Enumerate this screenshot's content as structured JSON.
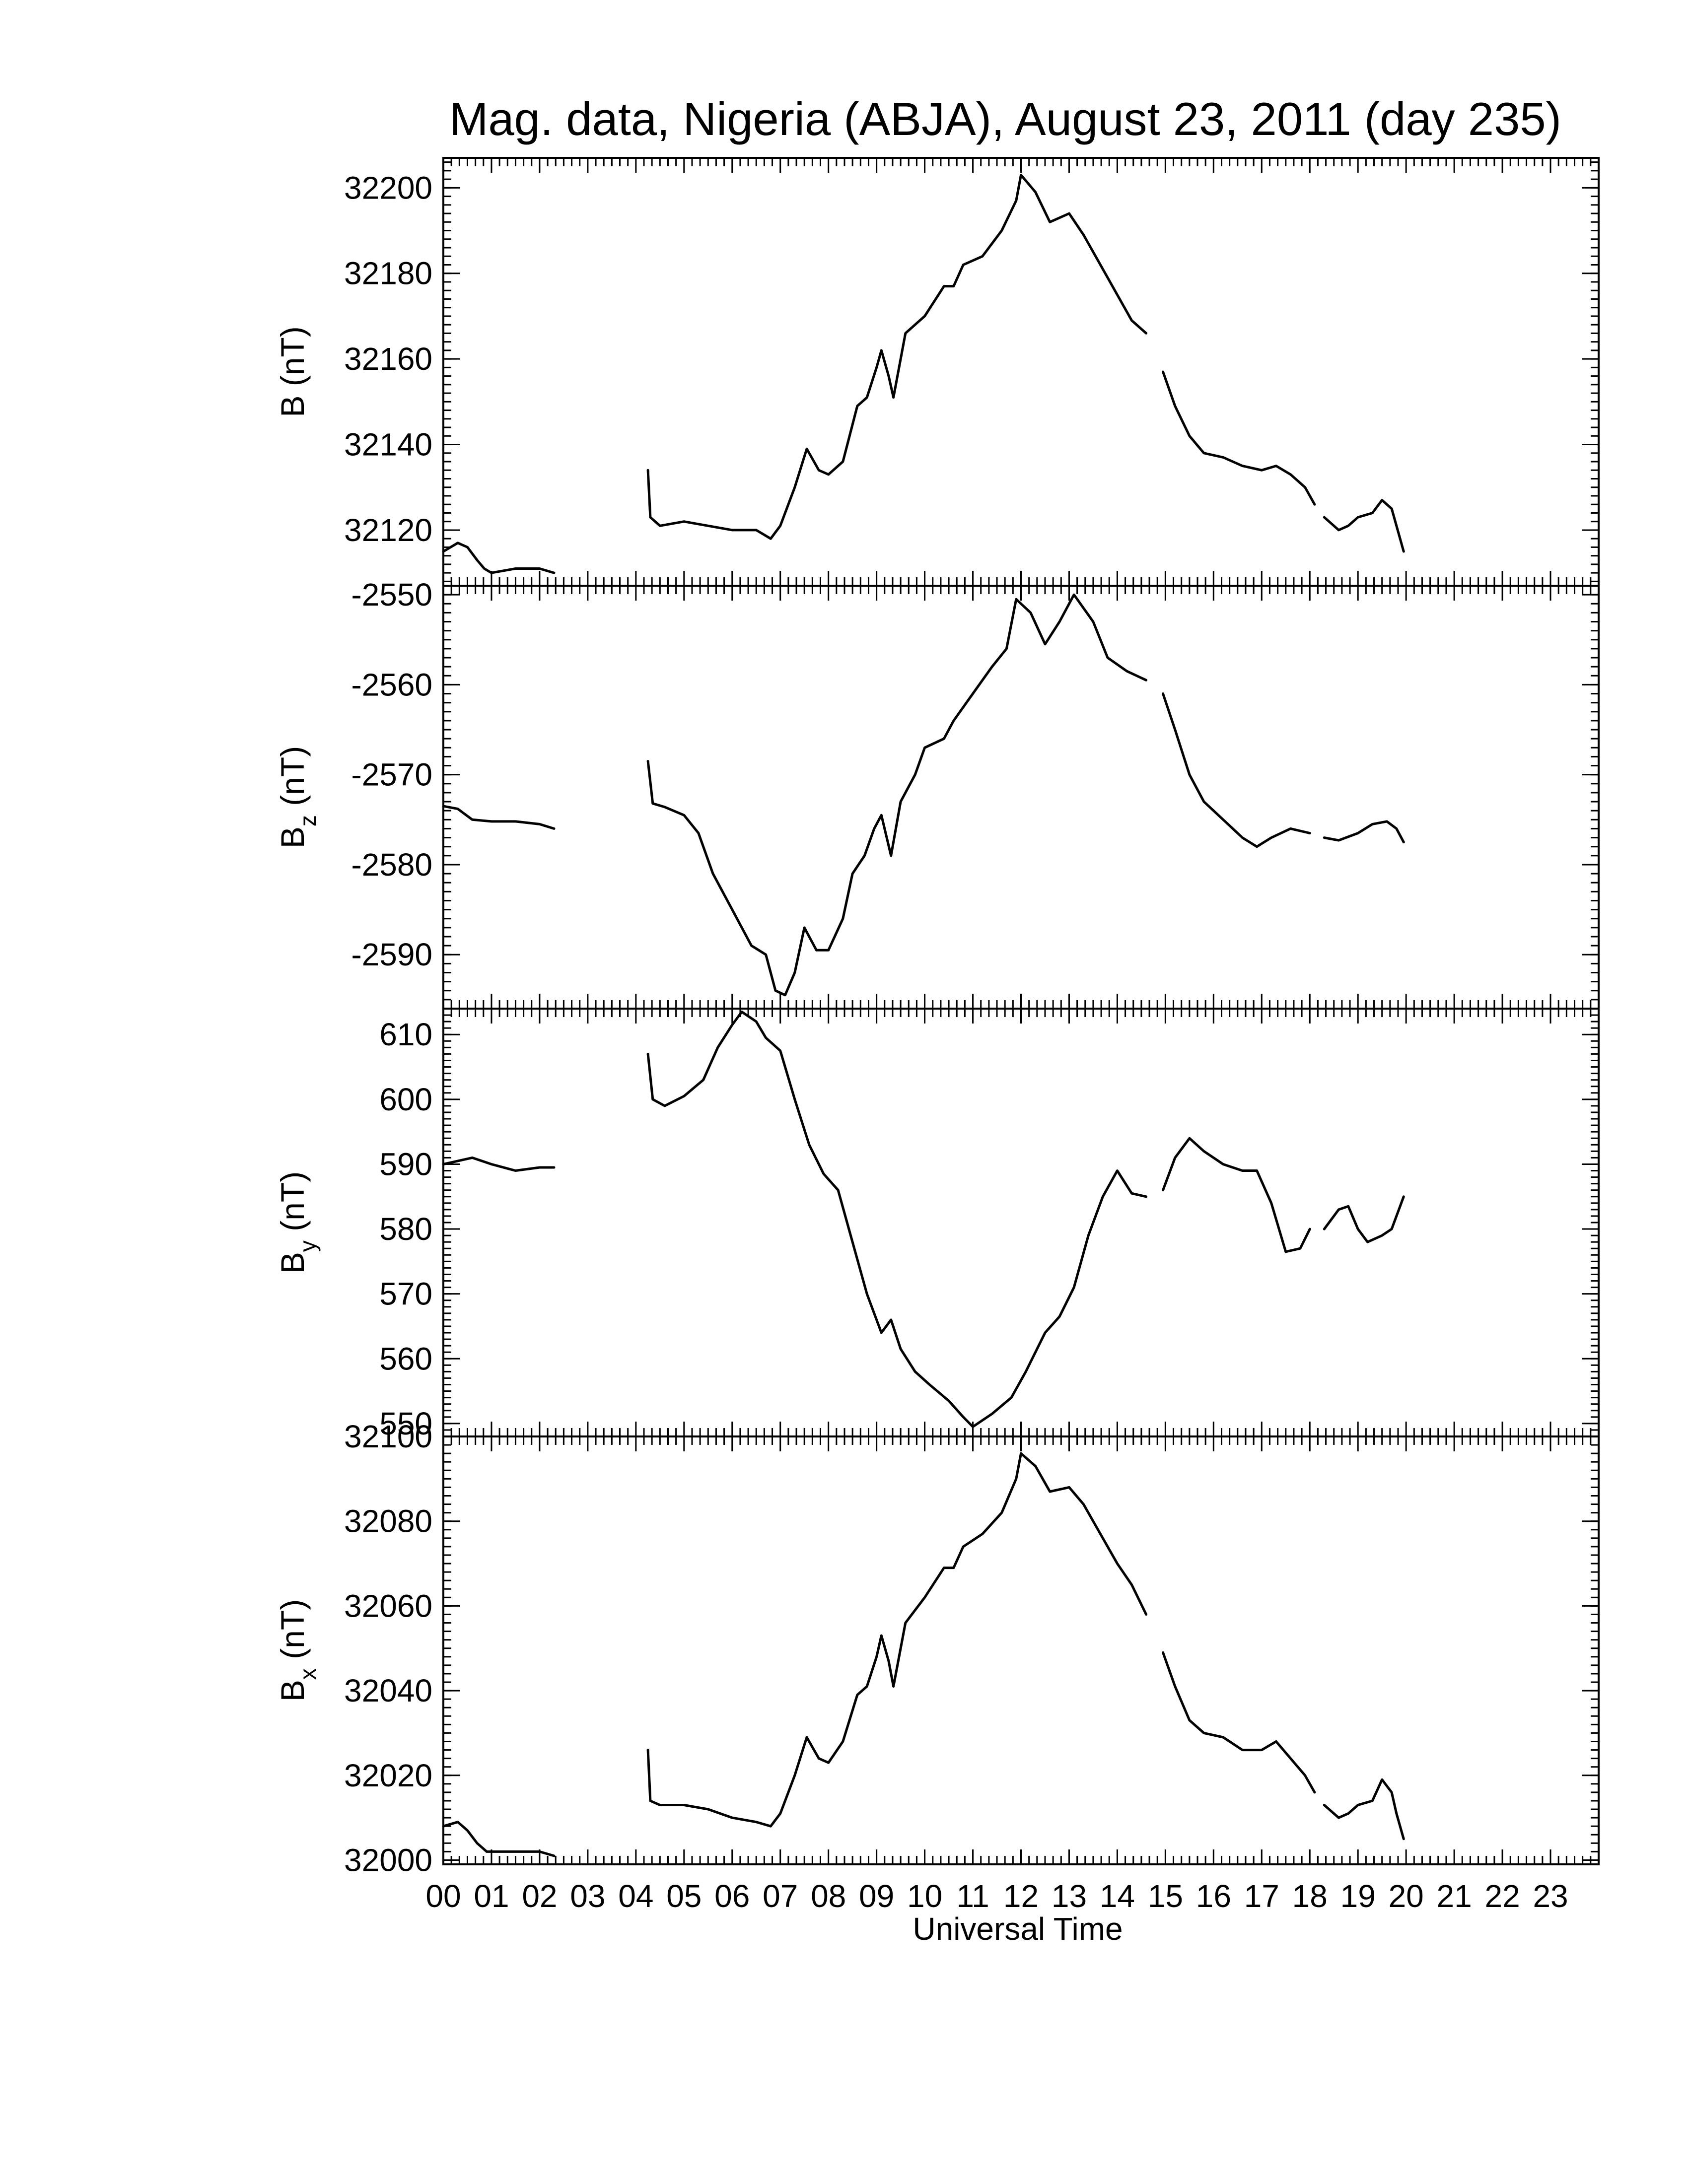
{
  "chart_data": {
    "type": "line",
    "title": "Mag. data, Nigeria (ABJA), August 23, 2011 (day 235)",
    "xlabel": "Universal Time",
    "x_tick_labels": [
      "00",
      "01",
      "02",
      "03",
      "04",
      "05",
      "06",
      "07",
      "08",
      "09",
      "10",
      "11",
      "12",
      "13",
      "14",
      "15",
      "16",
      "17",
      "18",
      "19",
      "20",
      "21",
      "22",
      "23"
    ],
    "xlim": [
      0,
      24
    ],
    "panels": [
      {
        "name": "B",
        "ylabel_main": "B",
        "ylabel_sub": "",
        "ylabel_unit": "(nT)",
        "ylim": [
          32107,
          32207
        ],
        "yticks": [
          32120,
          32140,
          32160,
          32180,
          32200
        ],
        "segments": [
          [
            [
              0.0,
              32115
            ],
            [
              0.3,
              32117
            ],
            [
              0.5,
              32116
            ],
            [
              0.7,
              32113
            ],
            [
              0.85,
              32111
            ],
            [
              1.0,
              32110
            ],
            [
              1.5,
              32111
            ],
            [
              2.0,
              32111
            ],
            [
              2.3,
              32110
            ]
          ],
          [
            [
              4.25,
              32134
            ],
            [
              4.3,
              32123
            ],
            [
              4.5,
              32121
            ],
            [
              5.0,
              32122
            ],
            [
              5.5,
              32121
            ],
            [
              6.0,
              32120
            ],
            [
              6.5,
              32120
            ],
            [
              6.8,
              32118
            ],
            [
              7.0,
              32121
            ],
            [
              7.3,
              32130
            ],
            [
              7.55,
              32139
            ],
            [
              7.8,
              32134
            ],
            [
              8.0,
              32133
            ],
            [
              8.3,
              32136
            ],
            [
              8.6,
              32149
            ],
            [
              8.8,
              32151
            ],
            [
              9.0,
              32158
            ],
            [
              9.1,
              32162
            ],
            [
              9.25,
              32156
            ],
            [
              9.35,
              32151
            ],
            [
              9.6,
              32166
            ],
            [
              10.0,
              32170
            ],
            [
              10.4,
              32177
            ],
            [
              10.6,
              32177
            ],
            [
              10.8,
              32182
            ],
            [
              11.2,
              32184
            ],
            [
              11.6,
              32190
            ],
            [
              11.9,
              32197
            ],
            [
              12.0,
              32203
            ],
            [
              12.3,
              32199
            ],
            [
              12.6,
              32192
            ],
            [
              13.0,
              32194
            ],
            [
              13.3,
              32189
            ],
            [
              13.6,
              32183
            ],
            [
              14.0,
              32175
            ],
            [
              14.3,
              32169
            ],
            [
              14.6,
              32166
            ]
          ],
          [
            [
              14.95,
              32157
            ],
            [
              15.2,
              32149
            ],
            [
              15.5,
              32142
            ],
            [
              15.8,
              32138
            ],
            [
              16.2,
              32137
            ],
            [
              16.6,
              32135
            ],
            [
              17.0,
              32134
            ],
            [
              17.3,
              32135
            ],
            [
              17.6,
              32133
            ],
            [
              17.9,
              32130
            ],
            [
              18.1,
              32126
            ]
          ],
          [
            [
              18.3,
              32123
            ],
            [
              18.6,
              32120
            ],
            [
              18.8,
              32121
            ],
            [
              19.0,
              32123
            ],
            [
              19.3,
              32124
            ],
            [
              19.5,
              32127
            ],
            [
              19.7,
              32125
            ],
            [
              19.8,
              32121
            ],
            [
              19.95,
              32115
            ]
          ]
        ]
      },
      {
        "name": "Bz",
        "ylabel_main": "B",
        "ylabel_sub": "z",
        "ylabel_unit": "(nT)",
        "ylim": [
          -2596,
          -2549
        ],
        "yticks": [
          -2590,
          -2580,
          -2570,
          -2560,
          -2550
        ],
        "segments": [
          [
            [
              0.0,
              -2573.5
            ],
            [
              0.3,
              -2573.8
            ],
            [
              0.6,
              -2575
            ],
            [
              1.0,
              -2575.2
            ],
            [
              1.5,
              -2575.2
            ],
            [
              2.0,
              -2575.5
            ],
            [
              2.3,
              -2576
            ]
          ],
          [
            [
              4.25,
              -2568.5
            ],
            [
              4.35,
              -2573.2
            ],
            [
              4.6,
              -2573.6
            ],
            [
              5.0,
              -2574.5
            ],
            [
              5.3,
              -2576.5
            ],
            [
              5.6,
              -2581
            ],
            [
              6.0,
              -2585
            ],
            [
              6.4,
              -2589
            ],
            [
              6.7,
              -2590
            ],
            [
              6.9,
              -2594
            ],
            [
              7.1,
              -2594.5
            ],
            [
              7.3,
              -2592
            ],
            [
              7.5,
              -2587
            ],
            [
              7.75,
              -2589.5
            ],
            [
              8.0,
              -2589.5
            ],
            [
              8.3,
              -2586
            ],
            [
              8.5,
              -2581
            ],
            [
              8.75,
              -2579
            ],
            [
              8.95,
              -2576
            ],
            [
              9.1,
              -2574.5
            ],
            [
              9.3,
              -2579
            ],
            [
              9.5,
              -2573
            ],
            [
              9.8,
              -2570
            ],
            [
              10.0,
              -2567
            ],
            [
              10.4,
              -2566
            ],
            [
              10.6,
              -2564
            ],
            [
              11.0,
              -2561
            ],
            [
              11.4,
              -2558
            ],
            [
              11.7,
              -2556
            ],
            [
              11.9,
              -2550.5
            ],
            [
              12.2,
              -2552
            ],
            [
              12.5,
              -2555.5
            ],
            [
              12.8,
              -2553
            ],
            [
              13.1,
              -2550
            ],
            [
              13.5,
              -2553
            ],
            [
              13.8,
              -2557
            ],
            [
              14.2,
              -2558.5
            ],
            [
              14.6,
              -2559.5
            ]
          ],
          [
            [
              14.95,
              -2561
            ],
            [
              15.2,
              -2565
            ],
            [
              15.5,
              -2570
            ],
            [
              15.8,
              -2573
            ],
            [
              16.2,
              -2575
            ],
            [
              16.6,
              -2577
            ],
            [
              16.9,
              -2578
            ],
            [
              17.2,
              -2577
            ],
            [
              17.6,
              -2576
            ],
            [
              18.0,
              -2576.5
            ]
          ],
          [
            [
              18.3,
              -2577
            ],
            [
              18.6,
              -2577.3
            ],
            [
              19.0,
              -2576.5
            ],
            [
              19.3,
              -2575.5
            ],
            [
              19.6,
              -2575.2
            ],
            [
              19.8,
              -2576
            ],
            [
              19.95,
              -2577.5
            ]
          ]
        ]
      },
      {
        "name": "By",
        "ylabel_main": "B",
        "ylabel_sub": "y",
        "ylabel_unit": "(nT)",
        "ylim": [
          548,
          614
        ],
        "yticks": [
          550,
          560,
          570,
          580,
          590,
          600,
          610
        ],
        "segments": [
          [
            [
              0.0,
              590
            ],
            [
              0.3,
              590.5
            ],
            [
              0.6,
              591
            ],
            [
              1.0,
              590
            ],
            [
              1.5,
              589
            ],
            [
              2.0,
              589.5
            ],
            [
              2.3,
              589.5
            ]
          ],
          [
            [
              4.25,
              607
            ],
            [
              4.35,
              600
            ],
            [
              4.6,
              599
            ],
            [
              5.0,
              600.5
            ],
            [
              5.4,
              603
            ],
            [
              5.7,
              608
            ],
            [
              6.0,
              611.5
            ],
            [
              6.2,
              613.5
            ],
            [
              6.5,
              612
            ],
            [
              6.7,
              609.5
            ],
            [
              7.0,
              607.5
            ],
            [
              7.3,
              600
            ],
            [
              7.6,
              593
            ],
            [
              7.9,
              588.5
            ],
            [
              8.2,
              586
            ],
            [
              8.5,
              578
            ],
            [
              8.8,
              570
            ],
            [
              9.1,
              564
            ],
            [
              9.3,
              566
            ],
            [
              9.5,
              561.5
            ],
            [
              9.8,
              558
            ],
            [
              10.1,
              556
            ],
            [
              10.5,
              553.5
            ],
            [
              10.8,
              551
            ],
            [
              11.0,
              549.5
            ],
            [
              11.4,
              551.5
            ],
            [
              11.8,
              554
            ],
            [
              12.1,
              558
            ],
            [
              12.5,
              564
            ],
            [
              12.8,
              566.5
            ],
            [
              13.1,
              571
            ],
            [
              13.4,
              579
            ],
            [
              13.7,
              585
            ],
            [
              14.0,
              589
            ],
            [
              14.3,
              585.5
            ],
            [
              14.6,
              585
            ]
          ],
          [
            [
              14.95,
              586
            ],
            [
              15.2,
              591
            ],
            [
              15.5,
              594
            ],
            [
              15.8,
              592
            ],
            [
              16.2,
              590
            ],
            [
              16.6,
              589
            ],
            [
              16.9,
              589
            ],
            [
              17.2,
              584
            ],
            [
              17.5,
              576.5
            ],
            [
              17.8,
              577
            ],
            [
              18.0,
              580
            ]
          ],
          [
            [
              18.3,
              580
            ],
            [
              18.6,
              583
            ],
            [
              18.8,
              583.5
            ],
            [
              19.0,
              580
            ],
            [
              19.2,
              578
            ],
            [
              19.5,
              579
            ],
            [
              19.7,
              580
            ],
            [
              19.95,
              585
            ]
          ]
        ]
      },
      {
        "name": "Bx",
        "ylabel_main": "B",
        "ylabel_sub": "x",
        "ylabel_unit": "(nT)",
        "ylim": [
          31999,
          32100
        ],
        "yticks": [
          32000,
          32020,
          32040,
          32060,
          32080,
          32100
        ],
        "segments": [
          [
            [
              0.0,
              32008
            ],
            [
              0.3,
              32009
            ],
            [
              0.5,
              32007
            ],
            [
              0.7,
              32004
            ],
            [
              0.9,
              32002
            ],
            [
              1.5,
              32002
            ],
            [
              2.0,
              32002
            ],
            [
              2.3,
              32001
            ]
          ],
          [
            [
              4.25,
              32026
            ],
            [
              4.3,
              32014
            ],
            [
              4.5,
              32013
            ],
            [
              5.0,
              32013
            ],
            [
              5.5,
              32012
            ],
            [
              6.0,
              32010
            ],
            [
              6.5,
              32009
            ],
            [
              6.8,
              32008
            ],
            [
              7.0,
              32011
            ],
            [
              7.3,
              32020
            ],
            [
              7.55,
              32029
            ],
            [
              7.8,
              32024
            ],
            [
              8.0,
              32023
            ],
            [
              8.3,
              32028
            ],
            [
              8.6,
              32039
            ],
            [
              8.8,
              32041
            ],
            [
              9.0,
              32048
            ],
            [
              9.1,
              32053
            ],
            [
              9.25,
              32047
            ],
            [
              9.35,
              32041
            ],
            [
              9.6,
              32056
            ],
            [
              10.0,
              32062
            ],
            [
              10.4,
              32069
            ],
            [
              10.6,
              32069
            ],
            [
              10.8,
              32074
            ],
            [
              11.2,
              32077
            ],
            [
              11.6,
              32082
            ],
            [
              11.9,
              32090
            ],
            [
              12.0,
              32096
            ],
            [
              12.3,
              32093
            ],
            [
              12.6,
              32087
            ],
            [
              13.0,
              32088
            ],
            [
              13.3,
              32084
            ],
            [
              13.6,
              32078
            ],
            [
              14.0,
              32070
            ],
            [
              14.3,
              32065
            ],
            [
              14.6,
              32058
            ]
          ],
          [
            [
              14.95,
              32049
            ],
            [
              15.2,
              32041
            ],
            [
              15.5,
              32033
            ],
            [
              15.8,
              32030
            ],
            [
              16.2,
              32029
            ],
            [
              16.6,
              32026
            ],
            [
              17.0,
              32026
            ],
            [
              17.3,
              32028
            ],
            [
              17.6,
              32024
            ],
            [
              17.9,
              32020
            ],
            [
              18.1,
              32016
            ]
          ],
          [
            [
              18.3,
              32013
            ],
            [
              18.6,
              32010
            ],
            [
              18.8,
              32011
            ],
            [
              19.0,
              32013
            ],
            [
              19.3,
              32014
            ],
            [
              19.5,
              32019
            ],
            [
              19.7,
              32016
            ],
            [
              19.8,
              32011
            ],
            [
              19.95,
              32005
            ]
          ]
        ]
      }
    ]
  }
}
